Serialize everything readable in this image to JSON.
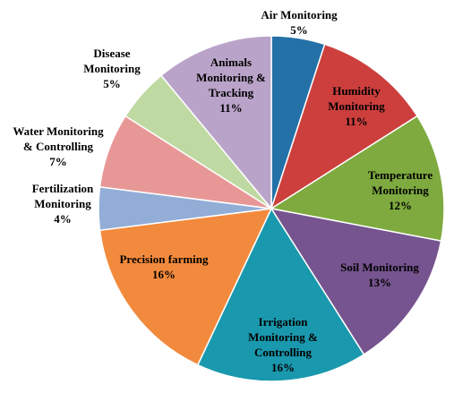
{
  "chart_data": {
    "type": "pie",
    "title": "",
    "legend": "none",
    "start_angle_deg": 0,
    "direction": "clockwise",
    "slices": [
      {
        "label": "Air Monitoring",
        "value": 5,
        "value_label": "5%",
        "color": "#2471A8",
        "label_lines": [
          "Air Monitoring",
          "5%"
        ]
      },
      {
        "label": "Humidity Monitoring",
        "value": 11,
        "value_label": "11%",
        "color": "#CC3F3C",
        "label_lines": [
          "Humidity",
          "Monitoring",
          "11%"
        ]
      },
      {
        "label": "Temperature Monitoring",
        "value": 12,
        "value_label": "12%",
        "color": "#7EAA3F",
        "label_lines": [
          "Temperature",
          "Monitoring",
          "12%"
        ]
      },
      {
        "label": "Soil Monitoring",
        "value": 13,
        "value_label": "13%",
        "color": "#75548F",
        "label_lines": [
          "Soil Monitoring",
          "13%"
        ]
      },
      {
        "label": "Irrigation Monitoring & Controlling",
        "value": 16,
        "value_label": "16%",
        "color": "#1A98AD",
        "label_lines": [
          "Irrigation",
          "Monitoring &",
          "Controlling",
          "16%"
        ]
      },
      {
        "label": "Precision farming",
        "value": 16,
        "value_label": "16%",
        "color": "#F28A3D",
        "label_lines": [
          "Precision farming",
          "16%"
        ]
      },
      {
        "label": "Fertilization Monitoring",
        "value": 4,
        "value_label": "4%",
        "color": "#92ADD6",
        "label_lines": [
          "Fertilization",
          "Monitoring",
          "4%"
        ]
      },
      {
        "label": "Water Monitoring & Controlling",
        "value": 7,
        "value_label": "7%",
        "color": "#E79896",
        "label_lines": [
          "Water Monitoring",
          "& Controlling",
          "7%"
        ]
      },
      {
        "label": "Disease Monitoring",
        "value": 5,
        "value_label": "5%",
        "color": "#BFD9A2",
        "label_lines": [
          "Disease",
          "Monitoring",
          "5%"
        ]
      },
      {
        "label": "Animals Monitoring & Tracking",
        "value": 11,
        "value_label": "11%",
        "color": "#BAA3C9",
        "label_lines": [
          "Animals",
          "Monitoring &",
          "Tracking",
          "11%"
        ]
      }
    ]
  }
}
